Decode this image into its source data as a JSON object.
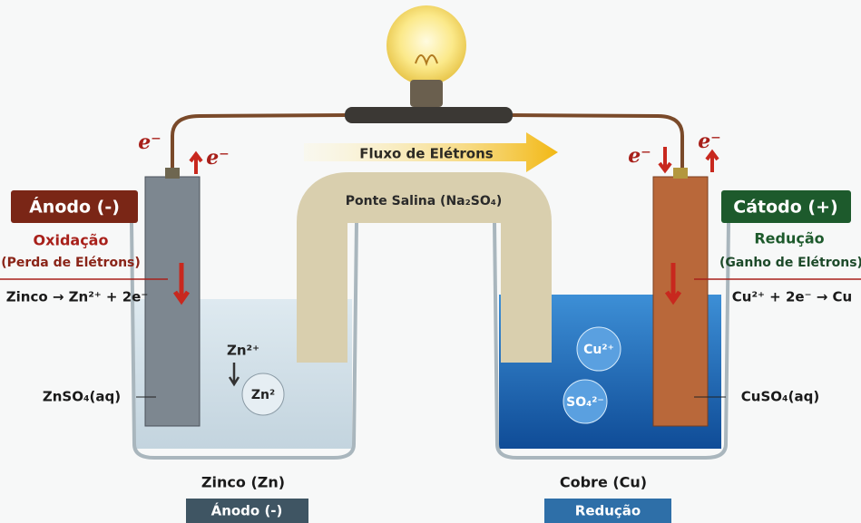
{
  "flow_label": "Fluxo de Elétrons",
  "salt_bridge": {
    "label": "Ponte Salina (Na₂SO₄)"
  },
  "anode": {
    "title": "Ánodo (-)",
    "process": "Oxidação",
    "detail": "(Perda de Elétrons)",
    "reaction": "Zinco → Zn²⁺ + 2e⁻",
    "electron_in": "e⁻",
    "electron_out": "e⁻",
    "ion_label": "Zn²⁺",
    "ion_bubble": "Zn²",
    "solution": "ZnSO₄(aq)",
    "metal": "Zinco (Zn)",
    "bottom_tag": "Ánodo (-)"
  },
  "cathode": {
    "title": "Cátodo (+)",
    "process": "Redução",
    "detail": "(Ganho de Elétrons)",
    "reaction": "Cu²⁺ + 2e⁻ → Cu",
    "electron_in": "e⁻",
    "electron_out": "e⁻",
    "ion_1": "Cu²⁺",
    "ion_2": "SO₄²⁻",
    "solution": "CuSO₄(aq)",
    "metal": "Cobre (Cu)",
    "bottom_tag": "Redução"
  }
}
